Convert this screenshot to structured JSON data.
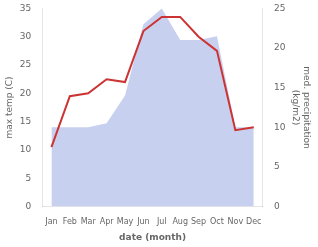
{
  "chart_data": {
    "type": "line",
    "categories": [
      "Jan",
      "Feb",
      "Mar",
      "Apr",
      "May",
      "Jun",
      "Jul",
      "Aug",
      "Sep",
      "Oct",
      "Nov",
      "Dec"
    ],
    "series": [
      {
        "type": "area",
        "color": "#c8d0f0",
        "axis": "y2",
        "values": [
          10.0,
          10.0,
          10.0,
          10.5,
          14.0,
          23.0,
          25.0,
          21.0,
          21.0,
          21.5,
          10.0,
          10.0
        ]
      },
      {
        "type": "line",
        "color": "#cc3333",
        "values": [
          10.5,
          19.5,
          20.0,
          22.5,
          22.0,
          31.0,
          33.5,
          33.5,
          30.0,
          27.5,
          13.5,
          14.0
        ]
      }
    ],
    "xlabel": "date (month)",
    "ylabel": "max temp (C)",
    "y2label": "med. precipitation\n(kg/m2)",
    "ylim": [
      0,
      35
    ],
    "yticks": [
      0,
      5,
      10,
      15,
      20,
      25,
      30,
      35
    ],
    "y2lim": [
      0,
      25
    ],
    "y2ticks": [
      0,
      5,
      10,
      15,
      20,
      25
    ],
    "grid": false
  }
}
